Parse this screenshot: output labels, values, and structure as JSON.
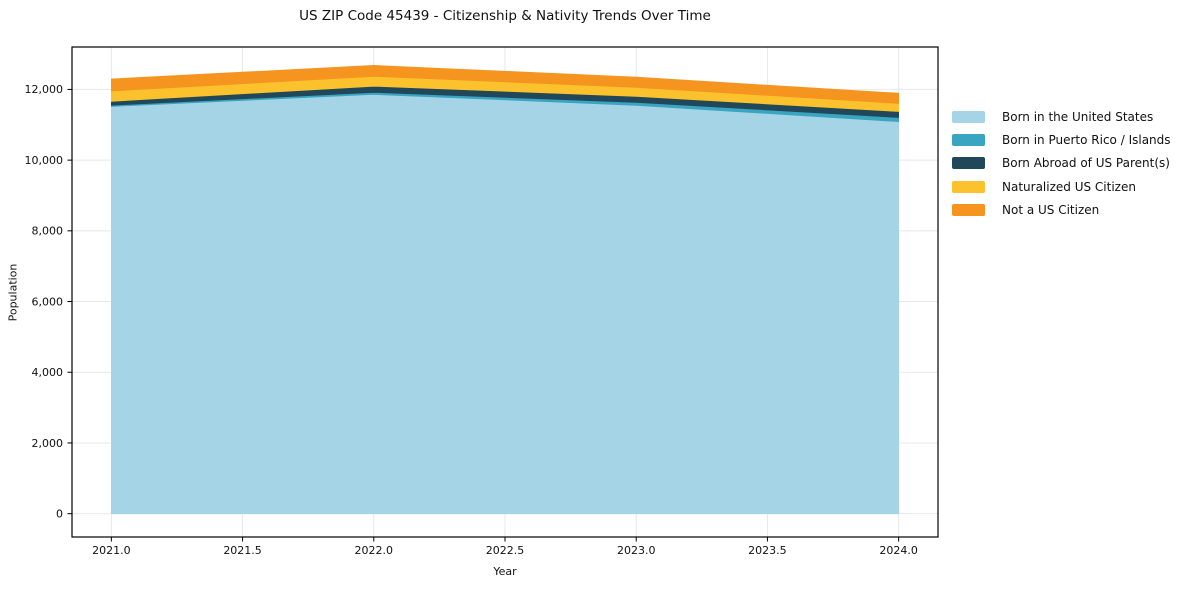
{
  "chart_data": {
    "type": "area",
    "stacked": true,
    "title": "US ZIP Code 45439 - Citizenship & Nativity Trends Over Time",
    "xlabel": "Year",
    "ylabel": "Population",
    "x": [
      2021,
      2022,
      2023,
      2024
    ],
    "series": [
      {
        "name": "Born in the United States",
        "color": "#a6d4e7",
        "values": [
          11520,
          11860,
          11550,
          11090
        ]
      },
      {
        "name": "Born in Puerto Rico / Islands",
        "color": "#3aa5c0",
        "values": [
          35,
          60,
          85,
          115
        ]
      },
      {
        "name": "Born Abroad of US Parent(s)",
        "color": "#20485a",
        "values": [
          110,
          170,
          170,
          170
        ]
      },
      {
        "name": "Naturalized US Citizen",
        "color": "#fbc22d",
        "values": [
          290,
          280,
          255,
          230
        ]
      },
      {
        "name": "Not a US Citizen",
        "color": "#f5941f",
        "values": [
          340,
          310,
          285,
          285
        ]
      }
    ],
    "totals": [
      12295,
      12680,
      12345,
      11890
    ],
    "xticks": {
      "values": [
        2021.0,
        2021.5,
        2022.0,
        2022.5,
        2023.0,
        2023.5,
        2024.0
      ],
      "labels": [
        "2021.0",
        "2021.5",
        "2022.0",
        "2022.5",
        "2023.0",
        "2023.5",
        "2024.0"
      ]
    },
    "yticks": {
      "values": [
        0,
        2000,
        4000,
        6000,
        8000,
        10000,
        12000
      ],
      "labels": [
        "0",
        "2,000",
        "4,000",
        "6,000",
        "8,000",
        "10,000",
        "12,000"
      ]
    },
    "xlim": [
      2020.85,
      2024.15
    ],
    "ylim": [
      -660,
      13200
    ],
    "grid": true,
    "legend_position": "right",
    "colors": {
      "grid": "#e8e8e8",
      "spine": "#000000",
      "tick_label": "#111111",
      "background": "#ffffff"
    }
  }
}
